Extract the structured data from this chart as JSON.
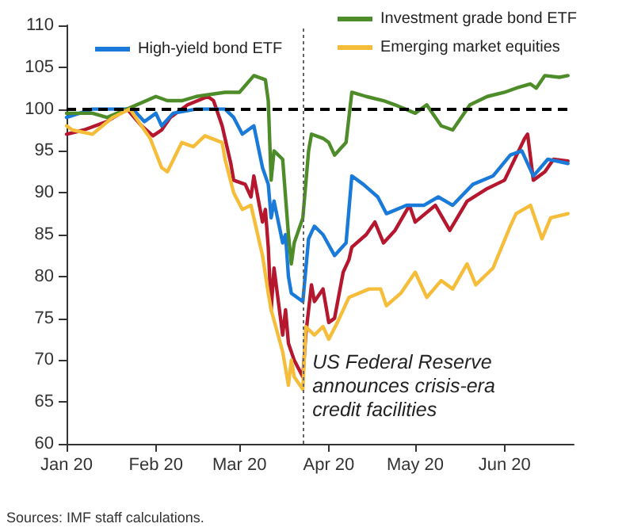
{
  "chart_data": {
    "type": "line",
    "legend": "top",
    "grid": false,
    "marker": "none",
    "line_style": "solid",
    "xlim": [
      "2020-01-01",
      "2020-06-25"
    ],
    "xticks": [
      {
        "value": "2020-01-01",
        "label": "Jan 20"
      },
      {
        "value": "2020-02-01",
        "label": "Feb 20"
      },
      {
        "value": "2020-03-01",
        "label": "Mar 20"
      },
      {
        "value": "2020-04-01",
        "label": "Apr 20"
      },
      {
        "value": "2020-05-01",
        "label": "May 20"
      },
      {
        "value": "2020-06-01",
        "label": "Jun 20"
      }
    ],
    "ylim": [
      60,
      110
    ],
    "yticks": [
      60,
      65,
      70,
      75,
      80,
      85,
      90,
      95,
      100,
      105,
      110
    ],
    "series": [
      {
        "color": "#b5172f",
        "x": [
          "2020-01-01",
          "2020-01-07",
          "2020-01-15",
          "2020-01-22",
          "2020-01-27",
          "2020-01-31",
          "2020-02-03",
          "2020-02-06",
          "2020-02-12",
          "2020-02-19",
          "2020-02-21",
          "2020-02-24",
          "2020-02-27",
          "2020-02-28",
          "2020-03-03",
          "2020-03-05",
          "2020-03-06",
          "2020-03-09",
          "2020-03-10",
          "2020-03-11",
          "2020-03-12",
          "2020-03-13",
          "2020-03-16",
          "2020-03-17",
          "2020-03-18",
          "2020-03-20",
          "2020-03-23",
          "2020-03-24",
          "2020-03-26",
          "2020-03-27",
          "2020-03-30",
          "2020-04-01",
          "2020-04-03",
          "2020-04-06",
          "2020-04-08",
          "2020-04-09",
          "2020-04-14",
          "2020-04-17",
          "2020-04-20",
          "2020-04-24",
          "2020-04-29",
          "2020-05-01",
          "2020-05-08",
          "2020-05-13",
          "2020-05-19",
          "2020-05-26",
          "2020-06-01",
          "2020-06-08",
          "2020-06-09",
          "2020-06-11",
          "2020-06-15",
          "2020-06-18",
          "2020-06-23"
        ],
        "values": [
          97,
          97.5,
          98.5,
          100,
          98,
          96.8,
          97.5,
          99,
          100.5,
          101.5,
          101,
          98,
          93.5,
          91.5,
          91,
          89.5,
          92,
          86.5,
          88,
          83.5,
          76,
          81,
          73,
          76,
          72,
          70,
          68,
          73,
          79,
          77,
          78.5,
          74.5,
          75,
          80.5,
          82,
          83.5,
          85,
          86.5,
          84,
          85.5,
          88.5,
          86.5,
          88.5,
          85.5,
          89,
          90.5,
          91.5,
          96.5,
          97,
          91.5,
          92.5,
          94,
          93.8
        ]
      },
      {
        "name": "High-yield bond ETF",
        "color": "#1a7ad9",
        "x": [
          "2020-01-01",
          "2020-01-10",
          "2020-01-20",
          "2020-01-24",
          "2020-01-28",
          "2020-02-01",
          "2020-02-03",
          "2020-02-07",
          "2020-02-15",
          "2020-02-25",
          "2020-02-28",
          "2020-03-02",
          "2020-03-06",
          "2020-03-09",
          "2020-03-11",
          "2020-03-12",
          "2020-03-13",
          "2020-03-16",
          "2020-03-17",
          "2020-03-18",
          "2020-03-19",
          "2020-03-23",
          "2020-03-25",
          "2020-03-27",
          "2020-03-30",
          "2020-04-03",
          "2020-04-07",
          "2020-04-09",
          "2020-04-13",
          "2020-04-18",
          "2020-04-21",
          "2020-04-28",
          "2020-05-04",
          "2020-05-09",
          "2020-05-14",
          "2020-05-21",
          "2020-05-28",
          "2020-06-03",
          "2020-06-07",
          "2020-06-11",
          "2020-06-16",
          "2020-06-23"
        ],
        "values": [
          99,
          100,
          100,
          100,
          98.5,
          99.5,
          98,
          99.5,
          100,
          100,
          99,
          97,
          98,
          93,
          91,
          87,
          89,
          84,
          85,
          80,
          78,
          77,
          84.5,
          86,
          85,
          82.5,
          84,
          92,
          91,
          89.5,
          87.5,
          88.5,
          88.5,
          89.5,
          88.5,
          91,
          92,
          94.5,
          95,
          92,
          94,
          93.5
        ]
      },
      {
        "name": "Investment grade bond ETF",
        "color": "#4e8c2a",
        "x": [
          "2020-01-01",
          "2020-01-10",
          "2020-01-15",
          "2020-01-22",
          "2020-02-01",
          "2020-02-05",
          "2020-02-10",
          "2020-02-15",
          "2020-02-25",
          "2020-03-01",
          "2020-03-06",
          "2020-03-10",
          "2020-03-11",
          "2020-03-12",
          "2020-03-13",
          "2020-03-16",
          "2020-03-18",
          "2020-03-19",
          "2020-03-20",
          "2020-03-23",
          "2020-03-24",
          "2020-03-25",
          "2020-03-26",
          "2020-03-30",
          "2020-04-01",
          "2020-04-03",
          "2020-04-07",
          "2020-04-09",
          "2020-04-14",
          "2020-04-20",
          "2020-04-24",
          "2020-05-01",
          "2020-05-05",
          "2020-05-10",
          "2020-05-14",
          "2020-05-20",
          "2020-05-26",
          "2020-06-01",
          "2020-06-05",
          "2020-06-10",
          "2020-06-12",
          "2020-06-15",
          "2020-06-20",
          "2020-06-23"
        ],
        "values": [
          99.5,
          99.5,
          99,
          100,
          101.5,
          101,
          101,
          101.5,
          102,
          102,
          104,
          103.5,
          101,
          91.5,
          95,
          94,
          85,
          81.5,
          84,
          87,
          91,
          95,
          97,
          96.5,
          96,
          94.5,
          96,
          102,
          101.5,
          101,
          100.5,
          99.5,
          100.5,
          98,
          97.5,
          100.5,
          101.5,
          102,
          102.5,
          103,
          102.5,
          104,
          103.8,
          104
        ]
      },
      {
        "name": "Emerging market equities",
        "color": "#f5bd3a",
        "x": [
          "2020-01-01",
          "2020-01-03",
          "2020-01-10",
          "2020-01-17",
          "2020-01-23",
          "2020-01-27",
          "2020-01-30",
          "2020-02-03",
          "2020-02-05",
          "2020-02-10",
          "2020-02-14",
          "2020-02-18",
          "2020-02-24",
          "2020-02-25",
          "2020-02-28",
          "2020-03-02",
          "2020-03-05",
          "2020-03-09",
          "2020-03-11",
          "2020-03-12",
          "2020-03-16",
          "2020-03-18",
          "2020-03-19",
          "2020-03-20",
          "2020-03-23",
          "2020-03-24",
          "2020-03-27",
          "2020-03-30",
          "2020-04-01",
          "2020-04-04",
          "2020-04-08",
          "2020-04-15",
          "2020-04-19",
          "2020-04-21",
          "2020-04-26",
          "2020-05-01",
          "2020-05-05",
          "2020-05-10",
          "2020-05-14",
          "2020-05-19",
          "2020-05-22",
          "2020-05-28",
          "2020-06-03",
          "2020-06-05",
          "2020-06-10",
          "2020-06-14",
          "2020-06-17",
          "2020-06-23"
        ],
        "values": [
          98,
          97.5,
          97,
          99,
          100,
          98,
          96.5,
          93,
          92.5,
          96,
          95.5,
          96.8,
          96,
          94,
          90,
          88,
          88.5,
          82.5,
          78,
          76,
          71,
          67,
          70,
          68,
          66.5,
          74,
          73,
          74,
          72.5,
          74.5,
          77.5,
          78.5,
          78.5,
          76.5,
          78,
          80.5,
          77.5,
          79.5,
          78.5,
          81.5,
          79,
          81,
          86,
          87.5,
          88.5,
          84.5,
          87,
          87.5
        ]
      }
    ],
    "ref_lines": [
      {
        "axis": "y",
        "value": 100,
        "color": "#000000",
        "line_style": "dashed"
      },
      {
        "axis": "x",
        "value": "2020-03-23",
        "color": "#666666",
        "line_style": "dotted",
        "label": "US Federal Reserve announces crisis-era credit facilities"
      }
    ],
    "annotations": [
      "Sources: IMF staff calculations."
    ]
  }
}
